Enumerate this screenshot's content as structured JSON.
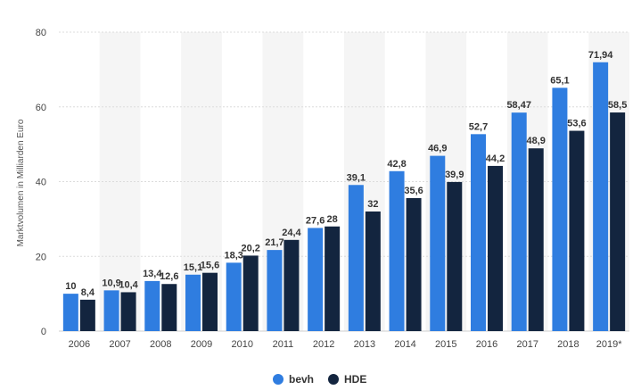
{
  "chart_data": {
    "type": "bar",
    "categories": [
      "2006",
      "2007",
      "2008",
      "2009",
      "2010",
      "2011",
      "2012",
      "2013",
      "2014",
      "2015",
      "2016",
      "2017",
      "2018",
      "2019*"
    ],
    "series": [
      {
        "name": "bevh",
        "color": "#2f7de0",
        "values": [
          10,
          10.9,
          13.4,
          15.1,
          18.3,
          21.7,
          27.6,
          39.1,
          42.8,
          46.9,
          52.7,
          58.47,
          65.1,
          71.94
        ],
        "labels": [
          "10",
          "10,9",
          "13,4",
          "15,1",
          "18,3",
          "21,7",
          "27,6",
          "39,1",
          "42,8",
          "46,9",
          "52,7",
          "58,47",
          "65,1",
          "71,94"
        ]
      },
      {
        "name": "HDE",
        "color": "#13253f",
        "values": [
          8.4,
          10.4,
          12.6,
          15.6,
          20.2,
          24.4,
          28,
          32,
          35.6,
          39.9,
          44.2,
          48.9,
          53.6,
          58.5
        ],
        "labels": [
          "8,4",
          "10,4",
          "12,6",
          "15,6",
          "20,2",
          "24,4",
          "28",
          "32",
          "35,6",
          "39,9",
          "44,2",
          "48,9",
          "53,6",
          "58,5"
        ]
      }
    ],
    "title": "",
    "xlabel": "",
    "ylabel": "Marktvolumen in Milliarden Euro",
    "ylim": [
      0,
      80
    ],
    "yticks": [
      0,
      20,
      40,
      60,
      80
    ],
    "grid": true,
    "legend_position": "bottom-center",
    "band_color": "#f5f5f5"
  }
}
